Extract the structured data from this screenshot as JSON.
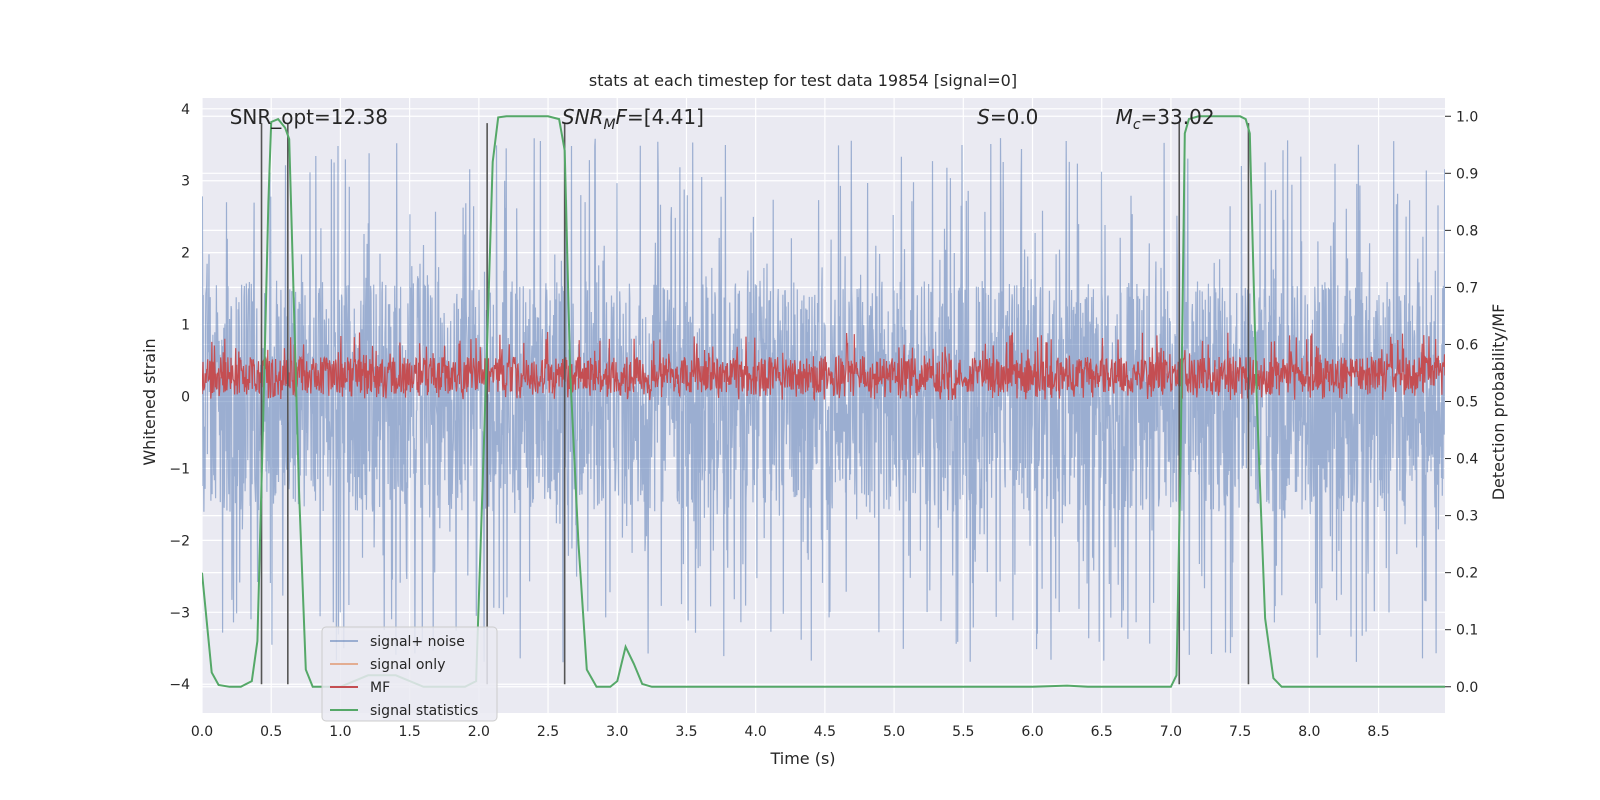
{
  "chart_data": {
    "type": "line",
    "title": "stats at each timestep for test data 19854 [signal=0]",
    "xlabel": "Time (s)",
    "ylabel_left": "Whitened strain",
    "ylabel_right": "Detection probability/MF",
    "xlim": [
      0.0,
      8.98
    ],
    "ylim_left": [
      -4.4,
      4.15
    ],
    "ylim_right": [
      -0.046,
      1.032
    ],
    "xticks": [
      0.0,
      0.5,
      1.0,
      1.5,
      2.0,
      2.5,
      3.0,
      3.5,
      4.0,
      4.5,
      5.0,
      5.5,
      6.0,
      6.5,
      7.0,
      7.5,
      8.0,
      8.5
    ],
    "yticks_left": [
      -4,
      -3,
      -2,
      -1,
      0,
      1,
      2,
      3,
      4
    ],
    "yticks_right": [
      0.0,
      0.1,
      0.2,
      0.3,
      0.4,
      0.5,
      0.6,
      0.7,
      0.8,
      0.9,
      1.0
    ],
    "grid": true,
    "legend_position": "lower-left",
    "annotations": [
      {
        "text": "SNR_opt=12.38",
        "x": 0.2
      },
      {
        "text": "SNR_MF=[4.41]",
        "x": 2.6
      },
      {
        "text": "S=0.0",
        "x": 5.6
      },
      {
        "text": "M_c=33.02",
        "x": 6.6
      }
    ],
    "vertical_lines": [
      0.43,
      0.62,
      2.06,
      2.62,
      7.06,
      7.56
    ],
    "series": [
      {
        "name": "signal+ noise",
        "color": "#4c72b0",
        "alpha": 0.5,
        "kind": "noise",
        "band": [
          -1.6,
          1.6
        ],
        "spike_max": 3.6,
        "spike_min": -3.7
      },
      {
        "name": "signal only",
        "color": "#dd8452",
        "alpha": 0.6,
        "kind": "flat",
        "value": 0.0
      },
      {
        "name": "MF",
        "color": "#c44e52",
        "kind": "noise",
        "band": [
          0.05,
          0.55
        ],
        "spike_max": 0.9,
        "spike_min": -0.05
      },
      {
        "name": "signal statistics",
        "color": "#55a868",
        "axis": "right",
        "x": [
          0.0,
          0.07,
          0.12,
          0.2,
          0.28,
          0.36,
          0.4,
          0.44,
          0.48,
          0.5,
          0.55,
          0.6,
          0.63,
          0.66,
          0.7,
          0.75,
          0.8,
          0.85,
          1.0,
          1.2,
          1.4,
          1.6,
          1.8,
          1.9,
          1.98,
          2.02,
          2.06,
          2.1,
          2.14,
          2.2,
          2.5,
          2.58,
          2.62,
          2.66,
          2.72,
          2.78,
          2.85,
          2.95,
          3.0,
          3.06,
          3.12,
          3.18,
          3.25,
          3.4,
          4.0,
          5.0,
          6.0,
          6.25,
          6.4,
          7.0,
          7.04,
          7.07,
          7.1,
          7.13,
          7.2,
          7.5,
          7.54,
          7.57,
          7.62,
          7.68,
          7.74,
          7.8,
          8.0,
          8.5,
          8.98
        ],
        "y": [
          0.2,
          0.025,
          0.003,
          0.0,
          0.0,
          0.01,
          0.08,
          0.45,
          0.85,
          0.99,
          0.995,
          0.98,
          0.96,
          0.7,
          0.35,
          0.03,
          0.0,
          0.0,
          0.0,
          0.02,
          0.02,
          0.0,
          0.0,
          0.0,
          0.01,
          0.3,
          0.6,
          0.92,
          0.998,
          1.0,
          1.0,
          0.995,
          0.94,
          0.55,
          0.25,
          0.03,
          0.0,
          0.0,
          0.01,
          0.07,
          0.04,
          0.005,
          0.0,
          0.0,
          0.0,
          0.0,
          0.0,
          0.002,
          0.0,
          0.0,
          0.02,
          0.4,
          0.97,
          0.995,
          1.0,
          1.0,
          0.995,
          0.97,
          0.5,
          0.12,
          0.015,
          0.0,
          0.0,
          0.0,
          0.0
        ]
      }
    ]
  }
}
